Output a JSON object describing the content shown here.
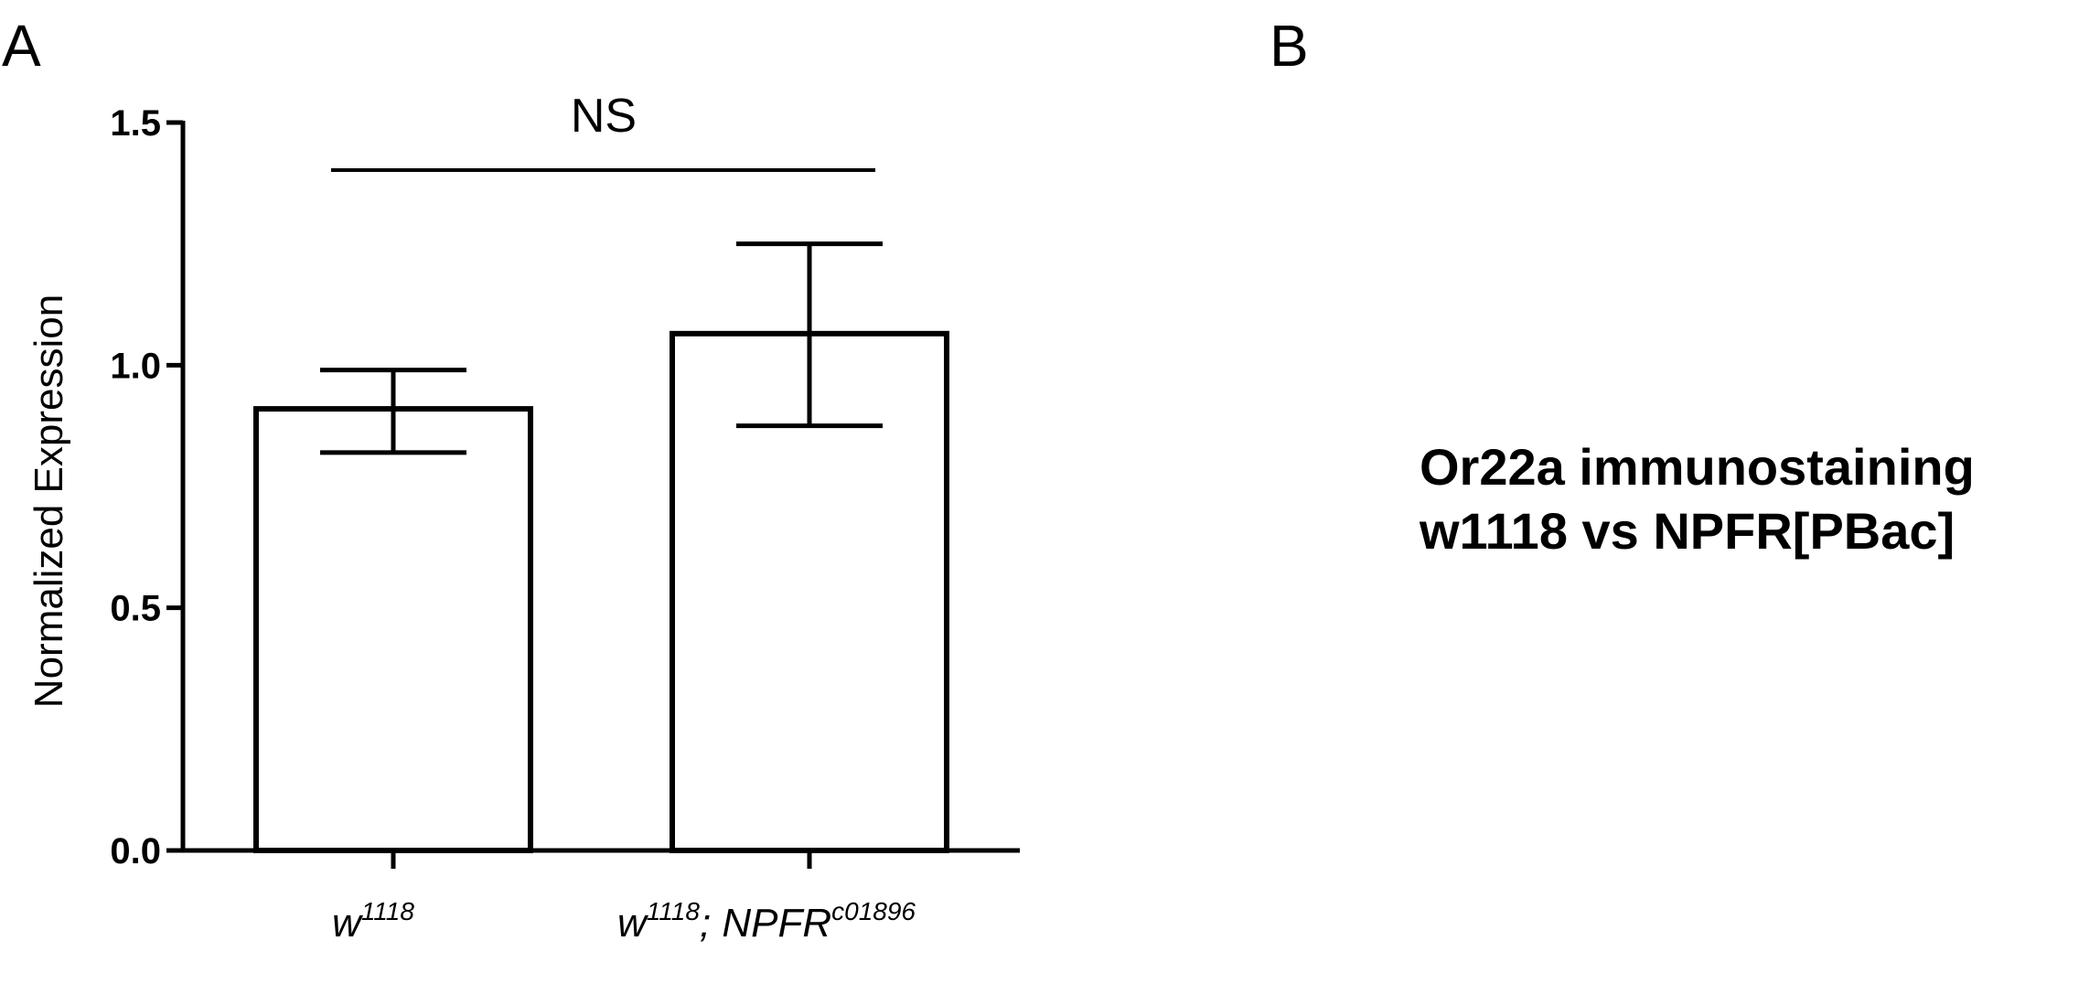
{
  "panels": {
    "a_label": "A",
    "b_label": "B"
  },
  "panel_b": {
    "line1": "Or22a immunostaining",
    "line2": "w1118 vs NPFR[PBac]"
  },
  "significance": {
    "label": "NS"
  },
  "categories_display": [
    {
      "base": "w",
      "sup": "1118",
      "mid": "",
      "base2": "",
      "sup2": ""
    },
    {
      "base": "w",
      "sup": "1118",
      "mid": "; NPFR",
      "base2": "",
      "sup2": "c01896"
    }
  ],
  "chart_data": {
    "type": "bar",
    "categories": [
      "w1118",
      "w1118; NPFRc01896"
    ],
    "values": [
      0.91,
      1.065
    ],
    "error_low": [
      0.82,
      0.875
    ],
    "error_high": [
      0.99,
      1.25
    ],
    "title": "",
    "xlabel": "",
    "ylabel": "Normalized Expression",
    "ylim": [
      0,
      1.5
    ],
    "yticks": [
      "0.0",
      "0.5",
      "1.0",
      "1.5"
    ],
    "ytick_values": [
      0,
      0.5,
      1.0,
      1.5
    ],
    "annotations": [
      "NS"
    ],
    "bar_fill": "#ffffff",
    "bar_stroke": "#000000",
    "grid": false,
    "legend": "none"
  }
}
